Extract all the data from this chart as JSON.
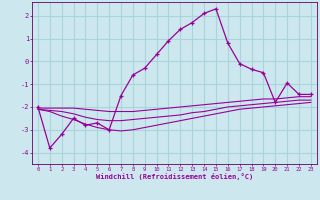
{
  "xlabel": "Windchill (Refroidissement éolien,°C)",
  "background_color": "#cce8ee",
  "grid_color": "#aad4dc",
  "line_color": "#990099",
  "spine_color": "#660066",
  "xlim": [
    -0.5,
    23.5
  ],
  "ylim": [
    -4.5,
    2.6
  ],
  "xticks": [
    0,
    1,
    2,
    3,
    4,
    5,
    6,
    7,
    8,
    9,
    10,
    11,
    12,
    13,
    14,
    15,
    16,
    17,
    18,
    19,
    20,
    21,
    22,
    23
  ],
  "yticks": [
    -4,
    -3,
    -2,
    -1,
    0,
    1,
    2
  ],
  "series1_x": [
    0,
    1,
    2,
    3,
    4,
    5,
    6,
    7,
    8,
    9,
    10,
    11,
    12,
    13,
    14,
    15,
    16,
    17,
    18,
    19,
    20,
    21,
    22,
    23
  ],
  "series1_y": [
    -2.0,
    -3.8,
    -3.2,
    -2.5,
    -2.8,
    -2.7,
    -3.0,
    -1.5,
    -0.6,
    -0.3,
    0.3,
    0.9,
    1.4,
    1.7,
    2.1,
    2.3,
    0.8,
    -0.1,
    -0.35,
    -0.5,
    -1.8,
    -0.95,
    -1.45,
    -1.45
  ],
  "series2_x": [
    0,
    1,
    2,
    3,
    4,
    5,
    6,
    7,
    8,
    9,
    10,
    11,
    12,
    13,
    14,
    15,
    16,
    17,
    18,
    19,
    20,
    21,
    22,
    23
  ],
  "series2_y": [
    -2.05,
    -2.05,
    -2.05,
    -2.05,
    -2.1,
    -2.15,
    -2.2,
    -2.2,
    -2.2,
    -2.15,
    -2.1,
    -2.05,
    -2.0,
    -1.95,
    -1.9,
    -1.85,
    -1.8,
    -1.75,
    -1.7,
    -1.65,
    -1.65,
    -1.6,
    -1.55,
    -1.55
  ],
  "series3_x": [
    0,
    1,
    2,
    3,
    4,
    5,
    6,
    7,
    8,
    9,
    10,
    11,
    12,
    13,
    14,
    15,
    16,
    17,
    18,
    19,
    20,
    21,
    22,
    23
  ],
  "series3_y": [
    -2.1,
    -2.15,
    -2.2,
    -2.3,
    -2.45,
    -2.55,
    -2.6,
    -2.6,
    -2.55,
    -2.5,
    -2.45,
    -2.4,
    -2.35,
    -2.25,
    -2.2,
    -2.1,
    -2.0,
    -1.95,
    -1.9,
    -1.85,
    -1.8,
    -1.75,
    -1.7,
    -1.7
  ],
  "series4_x": [
    0,
    1,
    2,
    3,
    4,
    5,
    6,
    7,
    8,
    9,
    10,
    11,
    12,
    13,
    14,
    15,
    16,
    17,
    18,
    19,
    20,
    21,
    22,
    23
  ],
  "series4_y": [
    -2.1,
    -2.2,
    -2.4,
    -2.55,
    -2.75,
    -2.9,
    -3.0,
    -3.05,
    -3.0,
    -2.9,
    -2.8,
    -2.7,
    -2.6,
    -2.5,
    -2.4,
    -2.3,
    -2.2,
    -2.1,
    -2.05,
    -2.0,
    -1.95,
    -1.9,
    -1.85,
    -1.8
  ]
}
